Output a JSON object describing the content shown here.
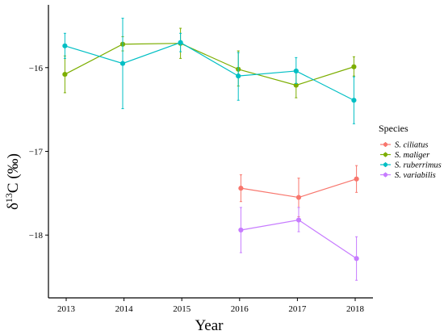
{
  "chart_data": {
    "type": "line",
    "xlabel": "Year",
    "ylabel_base": "δ",
    "ylabel_sup": "13",
    "ylabel_rest": "C (‰)",
    "x": [
      2013,
      2014,
      2015,
      2016,
      2017,
      2018
    ],
    "x_tick_labels": [
      "2013",
      "2014",
      "2015",
      "2016",
      "2017",
      "2018"
    ],
    "ylim": [
      -18.75,
      -15.25
    ],
    "y_ticks": [
      -16,
      -17,
      -18
    ],
    "y_tick_labels": [
      "−16",
      "−17",
      "−18"
    ],
    "grid": false,
    "legend_title": "Species",
    "legend_position": "right",
    "series": [
      {
        "name": "S. ciliatus",
        "color": "#F8766D",
        "points": [
          {
            "x": 2016,
            "y": -17.44,
            "lo": -17.6,
            "hi": -17.28
          },
          {
            "x": 2017,
            "y": -17.55,
            "lo": -17.78,
            "hi": -17.32
          },
          {
            "x": 2018,
            "y": -17.33,
            "lo": -17.49,
            "hi": -17.17
          }
        ]
      },
      {
        "name": "S. maliger",
        "color": "#7CAE00",
        "points": [
          {
            "x": 2013,
            "y": -16.08,
            "lo": -16.3,
            "hi": -15.86
          },
          {
            "x": 2014,
            "y": -15.72,
            "lo": -15.8,
            "hi": -15.63
          },
          {
            "x": 2015,
            "y": -15.71,
            "lo": -15.89,
            "hi": -15.53
          },
          {
            "x": 2016,
            "y": -16.02,
            "lo": -16.22,
            "hi": -15.8
          },
          {
            "x": 2017,
            "y": -16.21,
            "lo": -16.36,
            "hi": -16.06
          },
          {
            "x": 2018,
            "y": -15.99,
            "lo": -16.1,
            "hi": -15.87
          }
        ]
      },
      {
        "name": "S. ruberrimus",
        "color": "#00BFC4",
        "points": [
          {
            "x": 2013,
            "y": -15.74,
            "lo": -15.89,
            "hi": -15.59
          },
          {
            "x": 2014,
            "y": -15.95,
            "lo": -16.49,
            "hi": -15.41
          },
          {
            "x": 2015,
            "y": -15.7,
            "lo": -15.81,
            "hi": -15.59
          },
          {
            "x": 2016,
            "y": -16.1,
            "lo": -16.39,
            "hi": -15.82
          },
          {
            "x": 2017,
            "y": -16.04,
            "lo": -16.19,
            "hi": -15.88
          },
          {
            "x": 2018,
            "y": -16.39,
            "lo": -16.67,
            "hi": -16.11
          }
        ]
      },
      {
        "name": "S. variabilis",
        "color": "#C77CFF",
        "points": [
          {
            "x": 2016,
            "y": -17.94,
            "lo": -18.21,
            "hi": -17.67
          },
          {
            "x": 2017,
            "y": -17.82,
            "lo": -17.96,
            "hi": -17.67
          },
          {
            "x": 2018,
            "y": -18.28,
            "lo": -18.54,
            "hi": -18.02
          }
        ]
      }
    ]
  }
}
